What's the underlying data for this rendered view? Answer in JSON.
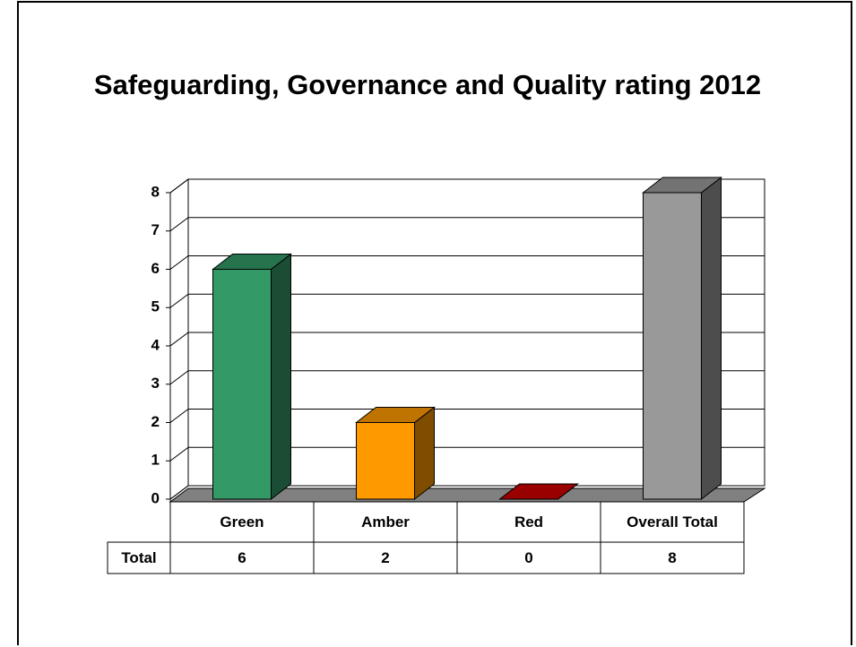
{
  "chart_data": {
    "type": "bar3d",
    "title": "Safeguarding, Governance and Quality rating 2012",
    "categories": [
      "Green",
      "Amber",
      "Red",
      "Overall Total"
    ],
    "values": [
      6,
      2,
      0,
      8
    ],
    "colors": [
      "#339966",
      "#ff9900",
      "#cc0000",
      "#999999"
    ],
    "data_table_label": "Total",
    "ylim": [
      0,
      8
    ],
    "yticks": [
      0,
      1,
      2,
      3,
      4,
      5,
      6,
      7,
      8
    ],
    "grid": true
  }
}
